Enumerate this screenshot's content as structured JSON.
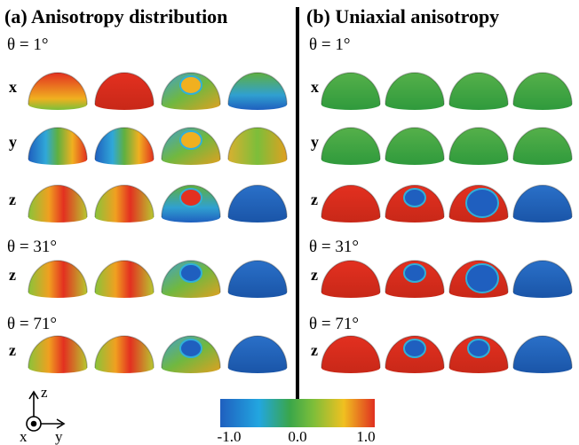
{
  "panels": [
    {
      "title": "(a) Anisotropy distribution",
      "sections": [
        {
          "theta": "θ = 1°",
          "rows": [
            {
              "label": "x"
            },
            {
              "label": "y"
            },
            {
              "label": "z"
            }
          ]
        },
        {
          "theta": "θ = 31°",
          "rows": [
            {
              "label": "z"
            }
          ]
        },
        {
          "theta": "θ = 71°",
          "rows": [
            {
              "label": "z"
            }
          ]
        }
      ]
    },
    {
      "title": "(b) Uniaxial anisotropy",
      "sections": [
        {
          "theta": "θ = 1°",
          "rows": [
            {
              "label": "x"
            },
            {
              "label": "y"
            },
            {
              "label": "z"
            }
          ]
        },
        {
          "theta": "θ = 31°",
          "rows": [
            {
              "label": "z"
            }
          ]
        },
        {
          "theta": "θ = 71°",
          "rows": [
            {
              "label": "z"
            }
          ]
        }
      ]
    }
  ],
  "colorbar": {
    "labels": [
      "-1.0",
      "0.0",
      "1.0"
    ]
  },
  "axes": {
    "z": "z",
    "x": "x",
    "y": "y"
  }
}
